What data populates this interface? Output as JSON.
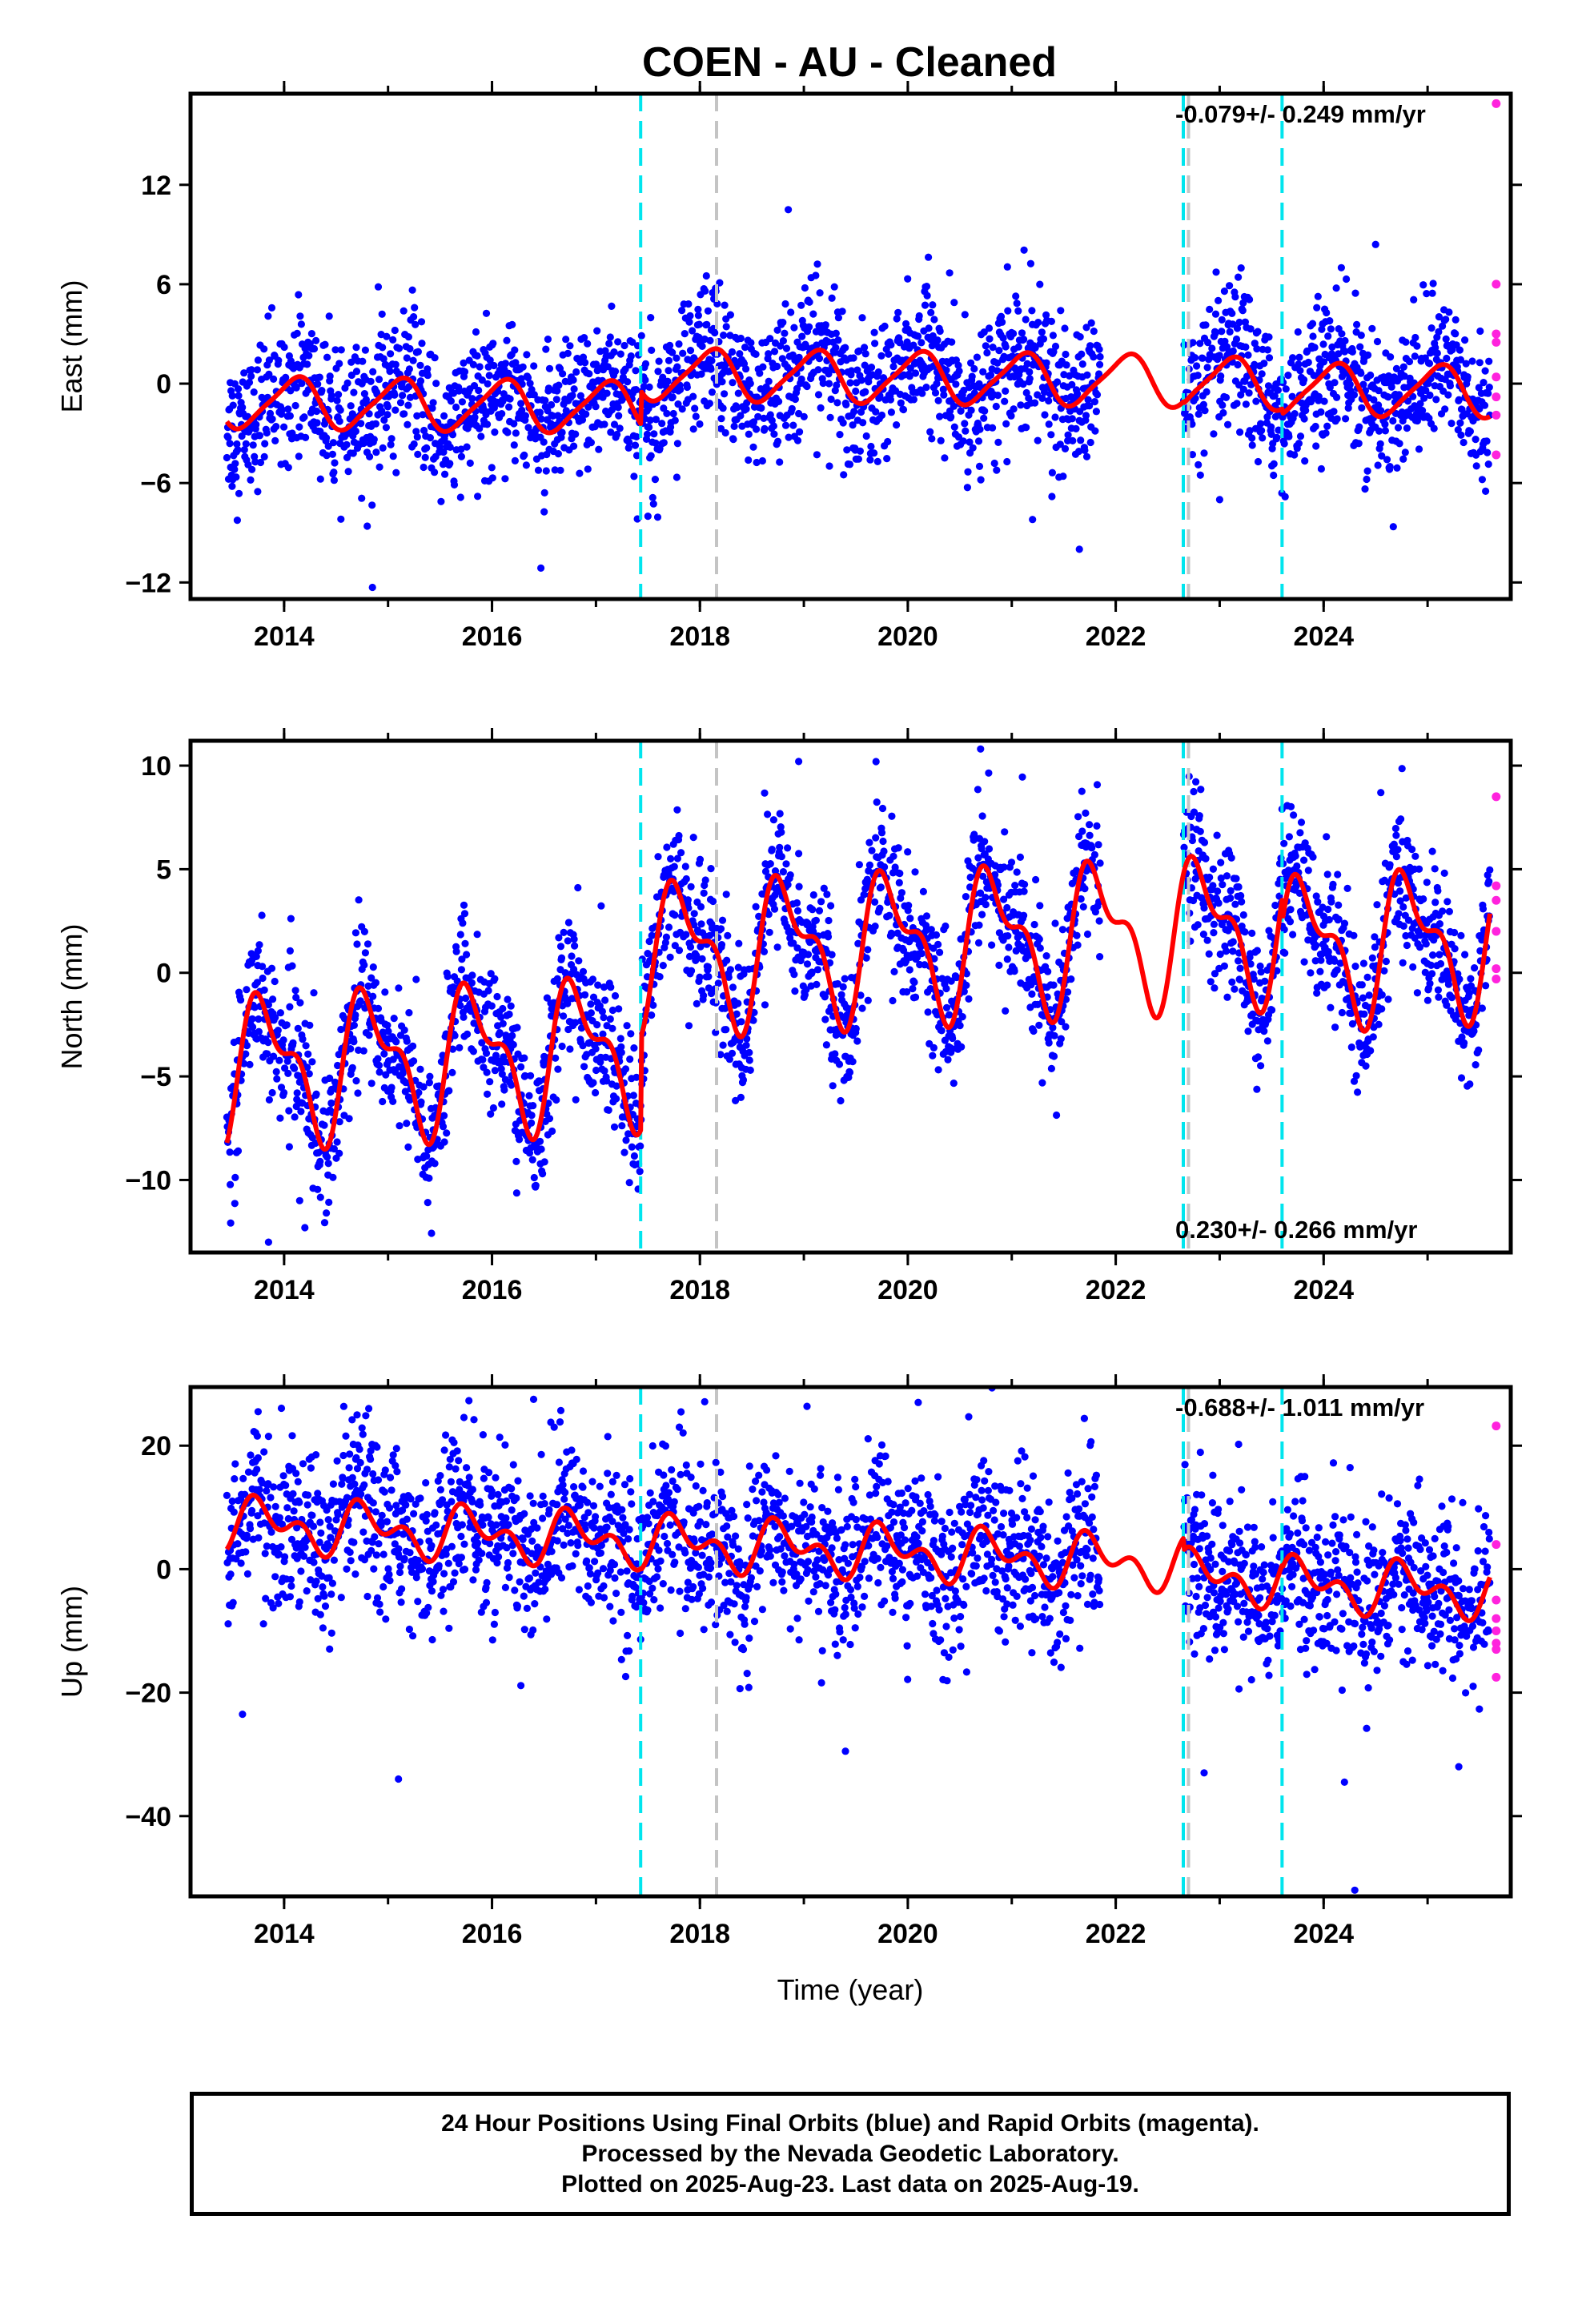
{
  "chart_data": {
    "type": "scatter",
    "title": "COEN  - AU - Cleaned",
    "xlabel": "Time (year)",
    "xlim": [
      2013.1,
      2025.8
    ],
    "xticks": [
      2014,
      2016,
      2018,
      2020,
      2022,
      2024
    ],
    "xtick_labels": [
      "2014",
      "2016",
      "2018",
      "2020",
      "2022",
      "2024"
    ],
    "series_colors": {
      "final": "#0000ff",
      "rapid": "#ff22dd",
      "model": "#ff0000"
    },
    "cyan_breaks": [
      2017.43,
      2022.65,
      2023.6
    ],
    "gray_breaks": [
      2018.16,
      2022.7
    ],
    "data_start": 2013.45,
    "data_end": 2025.6,
    "gap": [
      2021.85,
      2022.65
    ],
    "panels": [
      {
        "key": "east",
        "ylabel": "East (mm)",
        "ylim": [
          -13,
          17.5
        ],
        "yticks": [
          -12,
          -6,
          0,
          6,
          12
        ],
        "ytick_labels": [
          "−12",
          "−6",
          "0",
          "6",
          "12"
        ],
        "rate_text": "-0.079+/- 0.249 mm/yr",
        "rate_position": "top-right",
        "model": {
          "offsets": [
            [
              2013.4,
              -1.6
            ],
            [
              2017.43,
              0.4
            ],
            [
              2022.65,
              0.3
            ],
            [
              2023.6,
              0.0
            ]
          ],
          "trend": -0.079,
          "annual": {
            "a": 1.5,
            "phase": 2013.85
          },
          "semiannual": {
            "a": 0.3,
            "phase": 2013.6
          }
        },
        "noise": 2.1,
        "outliers": [
          [
            2014.85,
            -12.3
          ],
          [
            2014.8,
            -8.6
          ],
          [
            2018.85,
            10.5
          ],
          [
            2024.5,
            8.4
          ],
          [
            2021.65,
            -10.0
          ],
          [
            2021.2,
            -8.2
          ],
          [
            2017.5,
            -8.0
          ],
          [
            2023.0,
            -7.0
          ],
          [
            2013.5,
            -6.2
          ]
        ],
        "rapid": [
          [
            2025.66,
            16.9
          ],
          [
            2025.66,
            6.0
          ],
          [
            2025.66,
            3.0
          ],
          [
            2025.66,
            2.5
          ],
          [
            2025.66,
            0.4
          ],
          [
            2025.66,
            -0.8
          ],
          [
            2025.66,
            -1.9
          ],
          [
            2025.66,
            -4.3
          ]
        ]
      },
      {
        "key": "north",
        "ylabel": "North (mm)",
        "ylim": [
          -13.5,
          11.2
        ],
        "yticks": [
          -10,
          -5,
          0,
          5,
          10
        ],
        "ytick_labels": [
          "−10",
          "−5",
          "0",
          "5",
          "10"
        ],
        "rate_text": "0.230+/- 0.266 mm/yr",
        "rate_position": "bottom-right",
        "model": {
          "offsets": [
            [
              2013.4,
              -3.2
            ],
            [
              2017.43,
              1.3
            ],
            [
              2022.65,
              1.3
            ],
            [
              2023.6,
              0.2
            ]
          ],
          "trend": 0.23,
          "annual": {
            "a": 3.0,
            "phase": 2013.58
          },
          "semiannual": {
            "a": 1.5,
            "phase": 2013.55
          }
        },
        "noise": 1.7,
        "outliers": [
          [
            2013.85,
            -13.0
          ],
          [
            2014.2,
            -12.3
          ],
          [
            2018.95,
            10.2
          ],
          [
            2020.7,
            10.8
          ],
          [
            2014.15,
            -11.0
          ],
          [
            2024.55,
            8.7
          ],
          [
            2023.6,
            7.9
          ]
        ],
        "rapid": [
          [
            2025.66,
            8.5
          ],
          [
            2025.66,
            4.2
          ],
          [
            2025.66,
            3.5
          ],
          [
            2025.66,
            2.0
          ],
          [
            2025.66,
            0.2
          ],
          [
            2025.66,
            -0.3
          ]
        ]
      },
      {
        "key": "up",
        "ylabel": "Up (mm)",
        "ylim": [
          -53,
          29.5
        ],
        "yticks": [
          -40,
          -20,
          0,
          20
        ],
        "ytick_labels": [
          "−40",
          "−20",
          "0",
          "20"
        ],
        "rate_text": "-0.688+/- 1.011 mm/yr",
        "rate_position": "top-right",
        "model": {
          "offsets": [
            [
              2013.4,
              3.2
            ],
            [
              2017.43,
              3.0
            ],
            [
              2022.65,
              1.0
            ],
            [
              2023.6,
              0.5
            ]
          ],
          "trend": -0.688,
          "annual": {
            "a": 3.0,
            "phase": 2013.55
          },
          "semiannual": {
            "a": 2.5,
            "phase": 2013.55
          }
        },
        "noise": 6.5,
        "outliers": [
          [
            2015.1,
            -34.0
          ],
          [
            2024.3,
            -52.0
          ],
          [
            2019.4,
            -29.5
          ],
          [
            2025.3,
            -32.0
          ],
          [
            2024.2,
            -34.5
          ],
          [
            2013.6,
            -23.5
          ],
          [
            2016.4,
            27.5
          ],
          [
            2020.1,
            27.0
          ],
          [
            2013.75,
            25.5
          ],
          [
            2022.85,
            -33.0
          ]
        ],
        "rapid": [
          [
            2025.66,
            23.2
          ],
          [
            2025.66,
            4.0
          ],
          [
            2025.66,
            -5.0
          ],
          [
            2025.66,
            -8.0
          ],
          [
            2025.66,
            -10.0
          ],
          [
            2025.66,
            -12.0
          ],
          [
            2025.66,
            -13.0
          ],
          [
            2025.66,
            -17.5
          ]
        ]
      }
    ]
  },
  "footer": {
    "line1": "24 Hour Positions Using Final Orbits (blue) and Rapid Orbits (magenta).",
    "line2": "Processed by the Nevada Geodetic Laboratory.",
    "line3": "Plotted on 2025-Aug-23. Last data on 2025-Aug-19."
  }
}
